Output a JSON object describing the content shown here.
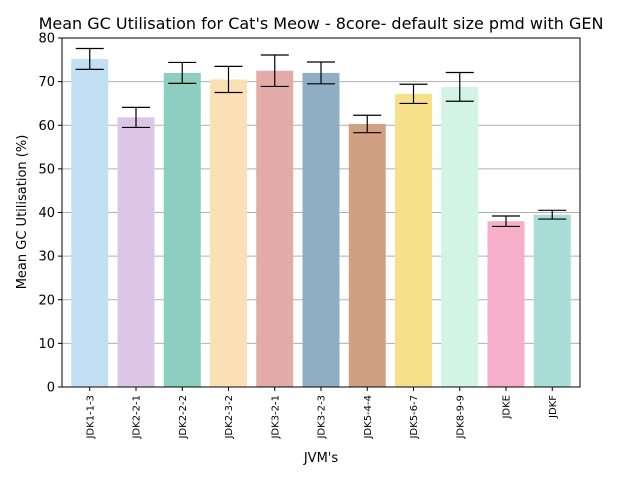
{
  "chart_data": {
    "type": "bar",
    "title": "Mean GC Utilisation for Cat's Meow - 8core- default size pmd with GEN",
    "xlabel": "JVM's",
    "ylabel": "Mean GC Utilisation (%)",
    "ylim": [
      0,
      80
    ],
    "yticks": [
      0,
      10,
      20,
      30,
      40,
      50,
      60,
      70,
      80
    ],
    "grid": "horizontal",
    "categories": [
      "JDK1-1-3",
      "JDK2-2-1",
      "JDK2-2-2",
      "JDK2-3-2",
      "JDK3-2-1",
      "JDK3-2-3",
      "JDK5-4-4",
      "JDK5-6-7",
      "JDK8-9-9",
      "JDKE",
      "JDKF"
    ],
    "values": [
      75.2,
      61.8,
      72.0,
      70.5,
      72.5,
      72.0,
      60.3,
      67.2,
      68.8,
      38.0,
      39.5
    ],
    "errors": [
      2.4,
      2.3,
      2.4,
      3.0,
      3.6,
      2.5,
      2.0,
      2.2,
      3.3,
      1.2,
      1.0
    ],
    "colors": [
      "#c3dff4",
      "#dcc6e6",
      "#8ccfc1",
      "#fbe0b6",
      "#e3aba7",
      "#8faec4",
      "#d1a083",
      "#f7e188",
      "#d3f4e4",
      "#f7aec8",
      "#a9ddd8"
    ]
  }
}
